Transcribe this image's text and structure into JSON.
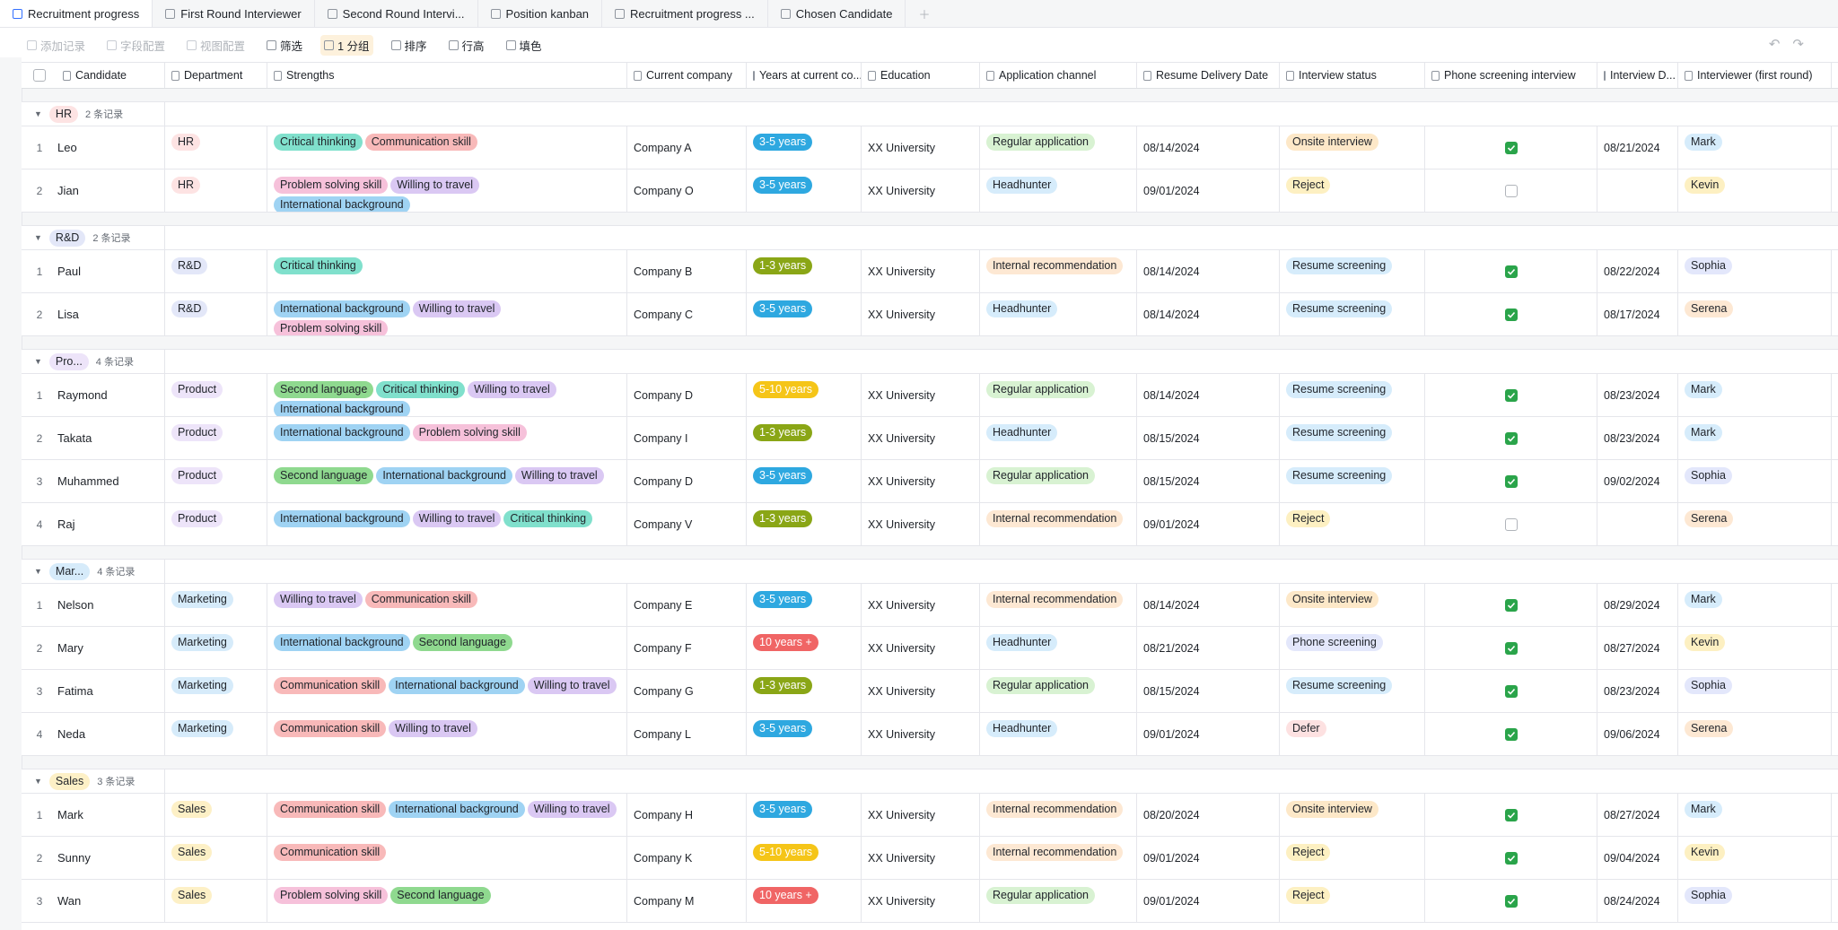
{
  "tabs": [
    "Recruitment progress",
    "First Round Interviewer",
    "Second Round Intervi...",
    "Position kanban",
    "Recruitment progress ...",
    "Chosen Candidate"
  ],
  "toolbar": [
    "添加记录",
    "字段配置",
    "视图配置",
    "筛选",
    "1 分组",
    "排序",
    "行高",
    "填色"
  ],
  "columns": [
    "Candidate",
    "Department",
    "Strengths",
    "Current company",
    "Years at current co...",
    "Education",
    "Application channel",
    "Resume Delivery Date",
    "Interview status",
    "Phone screening interview",
    "Interview D...",
    "Interviewer (first round)"
  ],
  "tag_colors": {
    "HR": "#fde3e3",
    "R&D": "#e3e7f8",
    "Product": "#ede4f9",
    "Marketing": "#d6ebfa",
    "Sales": "#fdf0c6",
    "Critical thinking": "#80e0cc",
    "Communication skill": "#f8b9b9",
    "Problem solving skill": "#f6c1da",
    "Willing to travel": "#dac8f3",
    "International background": "#9fd3f3",
    "Second language": "#8fd98f",
    "3-5 years": "#2ea8e0",
    "1-3 years": "#8aa616",
    "5-10 years": "#f5c518",
    "10 years +": "#f06565",
    "Regular application": "#d8f2d2",
    "Headhunter": "#d6ecfb",
    "Internal recommendation": "#fde8d3",
    "Onsite interview": "#fde8c8",
    "Reject": "#fdf0c2",
    "Resume screening": "#d6ecfb",
    "Phone screening": "#e3e7fb",
    "Defer": "#fde1e1",
    "Mark": "#d6ecfb",
    "Kevin": "#fdf0c2",
    "Sophia": "#e3e7fb",
    "Serena": "#fde8d3"
  },
  "groups": [
    {
      "label": "HR",
      "color": "#fde3e3",
      "count": "2 条记录",
      "rows": [
        {
          "index": 1,
          "candidate": "Leo",
          "department": "HR",
          "strengths": [
            "Critical thinking",
            "Communication skill"
          ],
          "company": "Company A",
          "years": "3-5 years",
          "education": "XX University",
          "channel": "Regular application",
          "delivery_date": "08/14/2024",
          "status": "Onsite interview",
          "phone_screening": true,
          "interview_date": "08/21/2024",
          "interviewer": "Mark"
        },
        {
          "index": 2,
          "candidate": "Jian",
          "department": "HR",
          "strengths": [
            "Problem solving skill",
            "Willing to travel",
            "International background"
          ],
          "company": "Company O",
          "years": "3-5 years",
          "education": "XX University",
          "channel": "Headhunter",
          "delivery_date": "09/01/2024",
          "status": "Reject",
          "phone_screening": false,
          "interview_date": null,
          "interviewer": "Kevin"
        }
      ]
    },
    {
      "label": "R&D",
      "color": "#e3e7f8",
      "count": "2 条记录",
      "rows": [
        {
          "index": 1,
          "candidate": "Paul",
          "department": "R&D",
          "strengths": [
            "Critical thinking"
          ],
          "company": "Company B",
          "years": "1-3 years",
          "education": "XX University",
          "channel": "Internal recommendation",
          "delivery_date": "08/14/2024",
          "status": "Resume screening",
          "phone_screening": true,
          "interview_date": "08/22/2024",
          "interviewer": "Sophia"
        },
        {
          "index": 2,
          "candidate": "Lisa",
          "department": "R&D",
          "strengths": [
            "International background",
            "Willing to travel",
            "Problem solving skill"
          ],
          "company": "Company C",
          "years": "3-5 years",
          "education": "XX University",
          "channel": "Headhunter",
          "delivery_date": "08/14/2024",
          "status": "Resume screening",
          "phone_screening": true,
          "interview_date": "08/17/2024",
          "interviewer": "Serena"
        }
      ]
    },
    {
      "label": "Pro...",
      "color": "#ede4f9",
      "count": "4 条记录",
      "rows": [
        {
          "index": 1,
          "candidate": "Raymond",
          "department": "Product",
          "strengths": [
            "Second language",
            "Critical thinking",
            "Willing to travel",
            "International background"
          ],
          "company": "Company D",
          "years": "5-10 years",
          "education": "XX University",
          "channel": "Regular application",
          "delivery_date": "08/14/2024",
          "status": "Resume screening",
          "phone_screening": true,
          "interview_date": "08/23/2024",
          "interviewer": "Mark"
        },
        {
          "index": 2,
          "candidate": "Takata",
          "department": "Product",
          "strengths": [
            "International background",
            "Problem solving skill"
          ],
          "company": "Company I",
          "years": "1-3 years",
          "education": "XX University",
          "channel": "Headhunter",
          "delivery_date": "08/15/2024",
          "status": "Resume screening",
          "phone_screening": true,
          "interview_date": "08/23/2024",
          "interviewer": "Mark"
        },
        {
          "index": 3,
          "candidate": "Muhammed",
          "department": "Product",
          "strengths": [
            "Second language",
            "International background",
            "Willing to travel"
          ],
          "company": "Company D",
          "years": "3-5 years",
          "education": "XX University",
          "channel": "Regular application",
          "delivery_date": "08/15/2024",
          "status": "Resume screening",
          "phone_screening": true,
          "interview_date": "09/02/2024",
          "interviewer": "Sophia"
        },
        {
          "index": 4,
          "candidate": "Raj",
          "department": "Product",
          "strengths": [
            "International background",
            "Willing to travel",
            "Critical thinking"
          ],
          "company": "Company V",
          "years": "1-3 years",
          "education": "XX University",
          "channel": "Internal recommendation",
          "delivery_date": "09/01/2024",
          "status": "Reject",
          "phone_screening": false,
          "interview_date": null,
          "interviewer": "Serena"
        }
      ]
    },
    {
      "label": "Mar...",
      "color": "#d6ebfa",
      "count": "4 条记录",
      "rows": [
        {
          "index": 1,
          "candidate": "Nelson",
          "department": "Marketing",
          "strengths": [
            "Willing to travel",
            "Communication skill"
          ],
          "company": "Company E",
          "years": "3-5 years",
          "education": "XX University",
          "channel": "Internal recommendation",
          "delivery_date": "08/14/2024",
          "status": "Onsite interview",
          "phone_screening": true,
          "interview_date": "08/29/2024",
          "interviewer": "Mark"
        },
        {
          "index": 2,
          "candidate": "Mary",
          "department": "Marketing",
          "strengths": [
            "International background",
            "Second language"
          ],
          "company": "Company F",
          "years": "10 years +",
          "education": "XX University",
          "channel": "Headhunter",
          "delivery_date": "08/21/2024",
          "status": "Phone screening",
          "phone_screening": true,
          "interview_date": "08/27/2024",
          "interviewer": "Kevin"
        },
        {
          "index": 3,
          "candidate": "Fatima",
          "department": "Marketing",
          "strengths": [
            "Communication skill",
            "International background",
            "Willing to travel"
          ],
          "company": "Company G",
          "years": "1-3 years",
          "education": "XX University",
          "channel": "Regular application",
          "delivery_date": "08/15/2024",
          "status": "Resume screening",
          "phone_screening": true,
          "interview_date": "08/23/2024",
          "interviewer": "Sophia"
        },
        {
          "index": 4,
          "candidate": "Neda",
          "department": "Marketing",
          "strengths": [
            "Communication skill",
            "Willing to travel"
          ],
          "company": "Company L",
          "years": "3-5 years",
          "education": "XX University",
          "channel": "Headhunter",
          "delivery_date": "09/01/2024",
          "status": "Defer",
          "phone_screening": true,
          "interview_date": "09/06/2024",
          "interviewer": "Serena"
        }
      ]
    },
    {
      "label": "Sales",
      "color": "#fdf0c6",
      "count": "3 条记录",
      "rows": [
        {
          "index": 1,
          "candidate": "Mark",
          "department": "Sales",
          "strengths": [
            "Communication skill",
            "International background",
            "Willing to travel"
          ],
          "company": "Company H",
          "years": "3-5 years",
          "education": "XX University",
          "channel": "Internal recommendation",
          "delivery_date": "08/20/2024",
          "status": "Onsite interview",
          "phone_screening": true,
          "interview_date": "08/27/2024",
          "interviewer": "Mark"
        },
        {
          "index": 2,
          "candidate": "Sunny",
          "department": "Sales",
          "strengths": [
            "Communication skill"
          ],
          "company": "Company K",
          "years": "5-10 years",
          "education": "XX University",
          "channel": "Internal recommendation",
          "delivery_date": "09/01/2024",
          "status": "Reject",
          "phone_screening": true,
          "interview_date": "09/04/2024",
          "interviewer": "Kevin"
        },
        {
          "index": 3,
          "candidate": "Wan",
          "department": "Sales",
          "strengths": [
            "Problem solving skill",
            "Second language"
          ],
          "company": "Company M",
          "years": "10 years +",
          "education": "XX University",
          "channel": "Regular application",
          "delivery_date": "09/01/2024",
          "status": "Reject",
          "phone_screening": true,
          "interview_date": "08/24/2024",
          "interviewer": "Sophia"
        }
      ]
    }
  ]
}
